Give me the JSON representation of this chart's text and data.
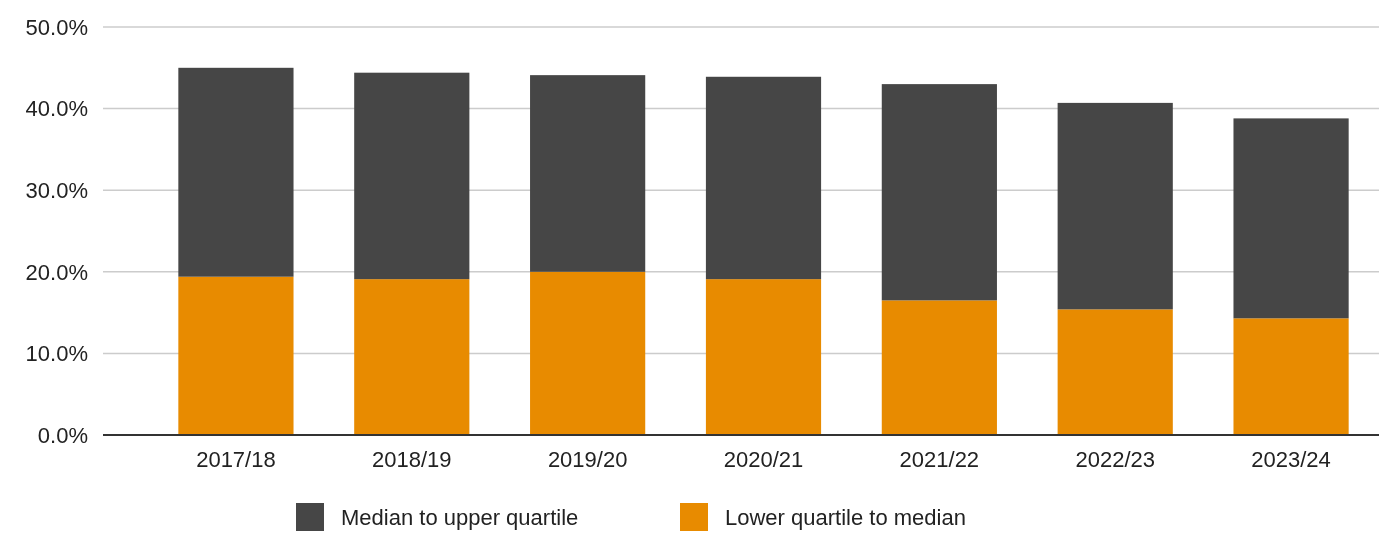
{
  "chart_data": {
    "type": "bar",
    "stacked": true,
    "categories": [
      "2017/18",
      "2018/19",
      "2019/20",
      "2020/21",
      "2021/22",
      "2022/23",
      "2023/24"
    ],
    "series": [
      {
        "name": "Lower quartile to median",
        "color": "#e88b00",
        "values": [
          19.4,
          19.1,
          20.0,
          19.1,
          16.5,
          15.4,
          14.3
        ]
      },
      {
        "name": "Median to upper quartile",
        "color": "#464646",
        "values": [
          25.6,
          25.3,
          24.1,
          24.8,
          26.5,
          25.3,
          24.5
        ]
      }
    ],
    "ylim": [
      0,
      50
    ],
    "yticks": [
      {
        "value": 0,
        "label": "0.0%"
      },
      {
        "value": 10,
        "label": "10.0%"
      },
      {
        "value": 20,
        "label": "20.0%"
      },
      {
        "value": 30,
        "label": "30.0%"
      },
      {
        "value": 40,
        "label": "40.0%"
      },
      {
        "value": 50,
        "label": "50.0%"
      }
    ],
    "grid": "y",
    "legend": "bottom"
  }
}
